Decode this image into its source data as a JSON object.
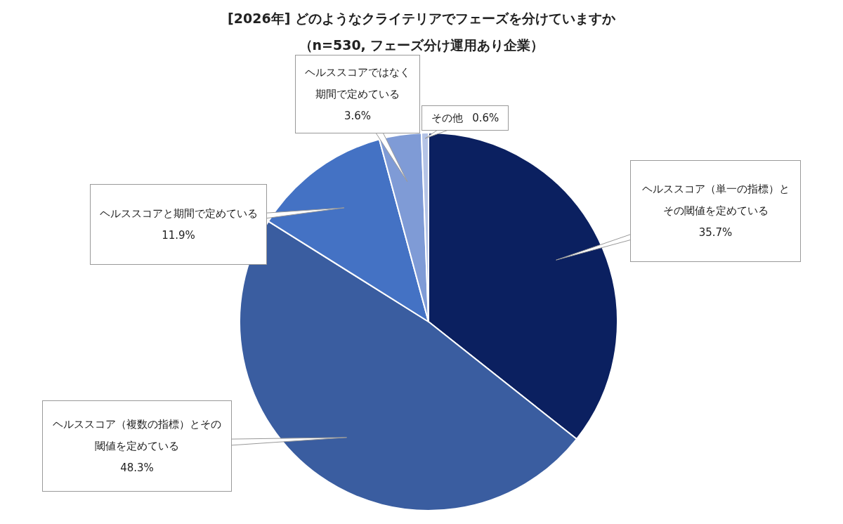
{
  "chart_data": {
    "type": "pie",
    "title": "[2026年] どのようなクライテリアでフェーズを分けていますか",
    "subtitle": "（n=530, フェーズ分け運用あり企業）",
    "categories": [
      "ヘルススコア（単一の指標）とその閾値を定めている",
      "ヘルススコア（複数の指標）とその閾値を定めている",
      "ヘルススコアと期間で定めている",
      "ヘルススコアではなく期間で定めている",
      "その他"
    ],
    "values": [
      35.7,
      48.3,
      11.9,
      3.6,
      0.6
    ],
    "value_labels": [
      "35.7%",
      "48.3%",
      "11.9%",
      "3.6%",
      "0.6%"
    ],
    "colors": [
      "#0b2060",
      "#3a5da0",
      "#4472c4",
      "#7f9bd6",
      "#b4c3e6"
    ],
    "legend": false
  }
}
